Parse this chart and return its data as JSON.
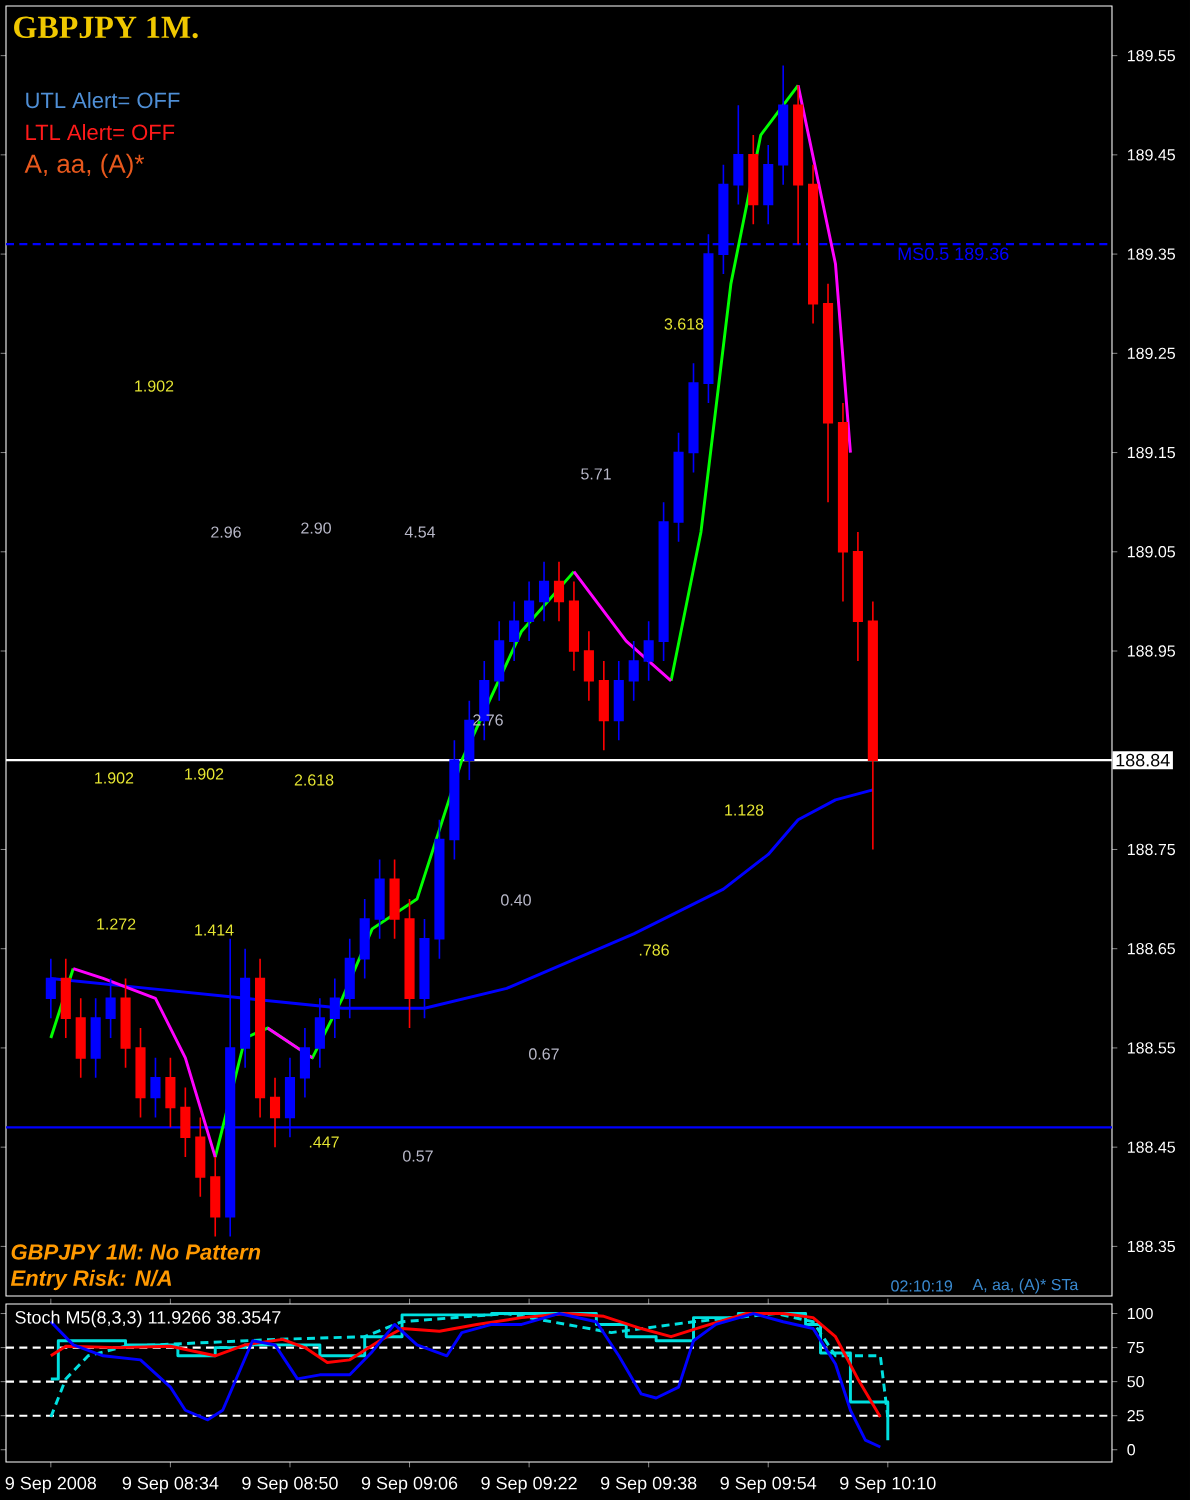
{
  "chart_data": [
    {
      "type": "candlestick",
      "title": "GBPJPY 1M.",
      "x": [
        "2008-09-09T08:18",
        "2008-09-09T08:20",
        "2008-09-09T08:22",
        "2008-09-09T08:24",
        "2008-09-09T08:26",
        "2008-09-09T08:28",
        "2008-09-09T08:30",
        "2008-09-09T08:32",
        "2008-09-09T08:34",
        "2008-09-09T08:36",
        "2008-09-09T08:38",
        "2008-09-09T08:40",
        "2008-09-09T08:42",
        "2008-09-09T08:44",
        "2008-09-09T08:46",
        "2008-09-09T08:48",
        "2008-09-09T08:50",
        "2008-09-09T08:52",
        "2008-09-09T08:54",
        "2008-09-09T08:56",
        "2008-09-09T08:58",
        "2008-09-09T09:00",
        "2008-09-09T09:02",
        "2008-09-09T09:04",
        "2008-09-09T09:06",
        "2008-09-09T09:08",
        "2008-09-09T09:10",
        "2008-09-09T09:12",
        "2008-09-09T09:14",
        "2008-09-09T09:16",
        "2008-09-09T09:18",
        "2008-09-09T09:20",
        "2008-09-09T09:22",
        "2008-09-09T09:24",
        "2008-09-09T09:26",
        "2008-09-09T09:28",
        "2008-09-09T09:30",
        "2008-09-09T09:32",
        "2008-09-09T09:34",
        "2008-09-09T09:36",
        "2008-09-09T09:38",
        "2008-09-09T09:40",
        "2008-09-09T09:42",
        "2008-09-09T09:44",
        "2008-09-09T09:46",
        "2008-09-09T09:48",
        "2008-09-09T09:50",
        "2008-09-09T09:52",
        "2008-09-09T09:54",
        "2008-09-09T09:56",
        "2008-09-09T09:58",
        "2008-09-09T10:00",
        "2008-09-09T10:02",
        "2008-09-09T10:04",
        "2008-09-09T10:06",
        "2008-09-09T10:08"
      ],
      "ohlc": [
        [
          188.6,
          188.64,
          188.58,
          188.62
        ],
        [
          188.62,
          188.64,
          188.56,
          188.58
        ],
        [
          188.58,
          188.6,
          188.52,
          188.54
        ],
        [
          188.54,
          188.6,
          188.52,
          188.58
        ],
        [
          188.58,
          188.62,
          188.56,
          188.6
        ],
        [
          188.6,
          188.62,
          188.53,
          188.55
        ],
        [
          188.55,
          188.57,
          188.48,
          188.5
        ],
        [
          188.5,
          188.54,
          188.48,
          188.52
        ],
        [
          188.52,
          188.54,
          188.47,
          188.49
        ],
        [
          188.49,
          188.51,
          188.44,
          188.46
        ],
        [
          188.46,
          188.48,
          188.4,
          188.42
        ],
        [
          188.42,
          188.44,
          188.36,
          188.38
        ],
        [
          188.38,
          188.66,
          188.36,
          188.55
        ],
        [
          188.55,
          188.65,
          188.53,
          188.62
        ],
        [
          188.62,
          188.64,
          188.48,
          188.5
        ],
        [
          188.5,
          188.52,
          188.45,
          188.48
        ],
        [
          188.48,
          188.54,
          188.46,
          188.52
        ],
        [
          188.52,
          188.57,
          188.5,
          188.55
        ],
        [
          188.55,
          188.6,
          188.53,
          188.58
        ],
        [
          188.58,
          188.62,
          188.56,
          188.6
        ],
        [
          188.6,
          188.66,
          188.58,
          188.64
        ],
        [
          188.64,
          188.7,
          188.62,
          188.68
        ],
        [
          188.68,
          188.74,
          188.66,
          188.72
        ],
        [
          188.72,
          188.74,
          188.66,
          188.68
        ],
        [
          188.68,
          188.7,
          188.57,
          188.6
        ],
        [
          188.6,
          188.68,
          188.58,
          188.66
        ],
        [
          188.66,
          188.78,
          188.64,
          188.76
        ],
        [
          188.76,
          188.86,
          188.74,
          188.84
        ],
        [
          188.84,
          188.9,
          188.82,
          188.88
        ],
        [
          188.88,
          188.94,
          188.86,
          188.92
        ],
        [
          188.92,
          188.98,
          188.9,
          188.96
        ],
        [
          188.96,
          189.0,
          188.94,
          188.98
        ],
        [
          188.98,
          189.02,
          188.96,
          189.0
        ],
        [
          189.0,
          189.04,
          188.98,
          189.02
        ],
        [
          189.02,
          189.04,
          188.98,
          189.0
        ],
        [
          189.0,
          189.02,
          188.93,
          188.95
        ],
        [
          188.95,
          188.97,
          188.9,
          188.92
        ],
        [
          188.92,
          188.94,
          188.85,
          188.88
        ],
        [
          188.88,
          188.94,
          188.86,
          188.92
        ],
        [
          188.92,
          188.96,
          188.9,
          188.94
        ],
        [
          188.94,
          188.98,
          188.92,
          188.96
        ],
        [
          188.96,
          189.1,
          188.94,
          189.08
        ],
        [
          189.08,
          189.17,
          189.06,
          189.15
        ],
        [
          189.15,
          189.24,
          189.13,
          189.22
        ],
        [
          189.22,
          189.37,
          189.2,
          189.35
        ],
        [
          189.35,
          189.44,
          189.33,
          189.42
        ],
        [
          189.42,
          189.5,
          189.4,
          189.45
        ],
        [
          189.45,
          189.47,
          189.38,
          189.4
        ],
        [
          189.4,
          189.46,
          189.38,
          189.44
        ],
        [
          189.44,
          189.54,
          189.42,
          189.5
        ],
        [
          189.5,
          189.52,
          189.36,
          189.42
        ],
        [
          189.42,
          189.44,
          189.28,
          189.3
        ],
        [
          189.3,
          189.32,
          189.1,
          189.18
        ],
        [
          189.18,
          189.2,
          189.0,
          189.05
        ],
        [
          189.05,
          189.07,
          188.94,
          188.98
        ],
        [
          188.98,
          189.0,
          188.75,
          188.84
        ]
      ],
      "series": [
        {
          "type": "line",
          "color": "#0000ff",
          "x": [
            "2008-09-09T08:18",
            "2008-09-09T08:31",
            "2008-09-09T08:44",
            "2008-09-09T08:57",
            "2008-09-09T09:08",
            "2008-09-09T09:19",
            "2008-09-09T09:36",
            "2008-09-09T09:48",
            "2008-09-09T09:54",
            "2008-09-09T09:58",
            "2008-09-09T10:03",
            "2008-09-09T10:08"
          ],
          "values": [
            188.62,
            188.61,
            188.6,
            188.59,
            188.59,
            188.61,
            188.665,
            188.71,
            188.745,
            188.78,
            188.8,
            188.81
          ]
        },
        {
          "type": "line",
          "color": "#00ff00",
          "x": [
            "2008-09-09T08:18",
            "2008-09-09T08:21",
            "2008-09-09T08:25",
            "2008-09-09T08:32",
            "2008-09-09T08:36",
            "2008-09-09T08:40",
            "2008-09-09T08:44",
            "2008-09-09T08:47",
            "2008-09-09T08:53",
            "2008-09-09T08:57",
            "2008-09-09T09:01",
            "2008-09-09T09:07",
            "2008-09-09T09:13",
            "2008-09-09T09:21",
            "2008-09-09T09:28",
            "2008-09-09T09:35",
            "2008-09-09T09:41",
            "2008-09-09T09:45",
            "2008-09-09T09:49",
            "2008-09-09T09:53",
            "2008-09-09T09:58"
          ],
          "values": [
            188.56,
            188.63,
            null,
            null,
            null,
            188.44,
            188.56,
            188.57,
            188.54,
            188.6,
            188.67,
            188.7,
            188.84,
            188.97,
            189.03,
            null,
            188.92,
            189.07,
            189.32,
            189.47,
            189.52
          ]
        },
        {
          "type": "line",
          "color": "#ff00ff",
          "x": [
            "2008-09-09T08:21",
            "2008-09-09T08:25",
            "2008-09-09T08:32",
            "2008-09-09T08:36",
            "2008-09-09T08:40",
            "2008-09-09T08:44",
            "2008-09-09T08:47",
            "2008-09-09T08:53",
            "2008-09-09T08:57",
            "2008-09-09T09:01",
            "2008-09-09T09:07",
            "2008-09-09T09:13",
            "2008-09-09T09:21",
            "2008-09-09T09:28",
            "2008-09-09T09:35",
            "2008-09-09T09:41",
            "2008-09-09T09:45",
            "2008-09-09T09:49",
            "2008-09-09T09:53",
            "2008-09-09T09:58",
            "2008-09-09T10:03",
            "2008-09-09T10:05"
          ],
          "values": [
            188.63,
            188.62,
            188.6,
            188.54,
            188.44,
            null,
            188.57,
            188.54,
            null,
            null,
            null,
            null,
            null,
            189.03,
            188.96,
            188.92,
            null,
            null,
            null,
            189.52,
            189.34,
            189.15
          ]
        }
      ],
      "xlim": [
        "2008-09-09T08:12",
        "2008-09-09T10:40"
      ],
      "ylim": [
        188.3,
        189.6
      ],
      "yticks": [
        188.35,
        188.45,
        188.55,
        188.65,
        188.75,
        188.95,
        189.05,
        189.15,
        189.25,
        189.35,
        189.45,
        189.55
      ],
      "tick_labels": "y",
      "grid": false,
      "marker": "none",
      "ref_lines": [
        {
          "axis": "y",
          "value": 189.36,
          "label": "MS0.5 189.36",
          "color": "#0000ff",
          "line_style": "dashed"
        },
        {
          "axis": "y",
          "value": 188.47,
          "color": "#0000ff"
        },
        {
          "axis": "y",
          "value": 188.84,
          "label": "188.84",
          "color": "#ffffff"
        }
      ],
      "annotations": [
        "UTL Alert= OFF",
        "LTL Alert= OFF",
        "A, aa, (A)*",
        "GBPJPY 1M: No Pattern",
        "Entry Risk: N/A",
        "02:10:19",
        "A, aa, (A)* STa",
        "1.902",
        "2.96",
        "2.90",
        "4.54",
        "5.71",
        "3.618",
        "2.76",
        "1.902",
        "1.902",
        "2.618",
        "1.128",
        "1.272",
        "1.414",
        "0.40",
        ".786",
        "0.67",
        ".447",
        "0.57"
      ]
    },
    {
      "type": "line",
      "title": "Stoch M5(8,3,3) 11.9266 38.3547",
      "series": [
        {
          "color": "#00e0e0",
          "type": "step",
          "x": [
            "2008-09-09T08:18",
            "2008-09-09T08:19",
            "2008-09-09T08:23",
            "2008-09-09T08:28",
            "2008-09-09T08:35",
            "2008-09-09T08:40",
            "2008-09-09T08:44",
            "2008-09-09T08:49",
            "2008-09-09T08:54",
            "2008-09-09T09:00",
            "2008-09-09T09:05",
            "2008-09-09T09:17",
            "2008-09-09T09:21",
            "2008-09-09T09:29",
            "2008-09-09T09:31",
            "2008-09-09T09:35",
            "2008-09-09T09:39",
            "2008-09-09T09:44",
            "2008-09-09T09:50",
            "2008-09-09T09:56",
            "2008-09-09T09:59",
            "2008-09-09T10:01",
            "2008-09-09T10:05",
            "2008-09-09T10:09",
            "2008-09-09T10:10"
          ],
          "values": [
            52,
            80,
            80,
            77,
            69,
            75,
            77,
            77,
            69,
            83,
            99,
            100,
            100,
            100,
            92,
            83,
            80,
            97,
            100,
            100,
            92,
            71,
            35,
            35,
            7
          ]
        },
        {
          "color": "#00e0e0",
          "line_style": "dashed",
          "x": [
            "2008-09-09T08:18",
            "2008-09-09T08:20",
            "2008-09-09T08:23",
            "2008-09-09T08:28",
            "2008-09-09T08:48",
            "2008-09-09T09:00",
            "2008-09-09T09:05",
            "2008-09-09T09:19",
            "2008-09-09T09:33",
            "2008-09-09T09:44",
            "2008-09-09T09:55",
            "2008-09-09T10:00",
            "2008-09-09T10:03",
            "2008-09-09T10:09",
            "2008-09-09T10:10"
          ],
          "values": [
            24,
            52,
            69,
            76,
            81,
            83,
            94,
            100,
            86,
            94,
            100,
            94,
            69,
            69,
            24
          ]
        },
        {
          "color": "#ff0000",
          "x": [
            "2008-09-09T08:18",
            "2008-09-09T08:20",
            "2008-09-09T08:27",
            "2008-09-09T08:34",
            "2008-09-09T08:40",
            "2008-09-09T08:44",
            "2008-09-09T08:49",
            "2008-09-09T08:52",
            "2008-09-09T08:55",
            "2008-09-09T08:58",
            "2008-09-09T09:02",
            "2008-09-09T09:05",
            "2008-09-09T09:10",
            "2008-09-09T09:15",
            "2008-09-09T09:21",
            "2008-09-09T09:27",
            "2008-09-09T09:32",
            "2008-09-09T09:37",
            "2008-09-09T09:41",
            "2008-09-09T09:45",
            "2008-09-09T09:51",
            "2008-09-09T09:56",
            "2008-09-09T10:00",
            "2008-09-09T10:03",
            "2008-09-09T10:06",
            "2008-09-09T10:09"
          ],
          "values": [
            69,
            76,
            75,
            76,
            69,
            77,
            81,
            75,
            64,
            66,
            80,
            89,
            87,
            92,
            97,
            100,
            98,
            89,
            83,
            90,
            100,
            100,
            97,
            83,
            52,
            24
          ]
        },
        {
          "color": "#0000ff",
          "x": [
            "2008-09-09T08:18",
            "2008-09-09T08:21",
            "2008-09-09T08:25",
            "2008-09-09T08:30",
            "2008-09-09T08:34",
            "2008-09-09T08:36",
            "2008-09-09T08:39",
            "2008-09-09T08:41",
            "2008-09-09T08:45",
            "2008-09-09T08:48",
            "2008-09-09T08:51",
            "2008-09-09T08:54",
            "2008-09-09T08:58",
            "2008-09-09T09:01",
            "2008-09-09T09:04",
            "2008-09-09T09:07",
            "2008-09-09T09:11",
            "2008-09-09T09:13",
            "2008-09-09T09:17",
            "2008-09-09T09:21",
            "2008-09-09T09:26",
            "2008-09-09T09:31",
            "2008-09-09T09:34",
            "2008-09-09T09:37",
            "2008-09-09T09:39",
            "2008-09-09T09:42",
            "2008-09-09T09:44",
            "2008-09-09T09:47",
            "2008-09-09T09:52",
            "2008-09-09T09:56",
            "2008-09-09T10:00",
            "2008-09-09T10:03",
            "2008-09-09T10:05",
            "2008-09-09T10:07",
            "2008-09-09T10:09"
          ],
          "values": [
            94,
            77,
            69,
            66,
            46,
            29,
            22,
            29,
            80,
            77,
            52,
            55,
            55,
            72,
            92,
            77,
            69,
            86,
            92,
            92,
            100,
            94,
            69,
            41,
            38,
            46,
            80,
            92,
            100,
            94,
            89,
            63,
            29,
            7,
            2
          ]
        }
      ],
      "xlim": [
        "2008-09-09T08:12",
        "2008-09-09T10:40"
      ],
      "ylim": [
        -9,
        107
      ],
      "yticks": [
        0,
        25,
        50,
        75,
        100
      ],
      "xticks": [
        {
          "value": "2008-09-09T08:18",
          "label": "9 Sep 2008"
        },
        {
          "value": "2008-09-09T08:34",
          "label": "9 Sep 08:34"
        },
        {
          "value": "2008-09-09T08:50",
          "label": "9 Sep 08:50"
        },
        {
          "value": "2008-09-09T09:06",
          "label": "9 Sep 09:06"
        },
        {
          "value": "2008-09-09T09:22",
          "label": "9 Sep 09:22"
        },
        {
          "value": "2008-09-09T09:38",
          "label": "9 Sep 09:38"
        },
        {
          "value": "2008-09-09T09:54",
          "label": "9 Sep 09:54"
        },
        {
          "value": "2008-09-09T10:10",
          "label": "9 Sep 10:10"
        }
      ],
      "grid": false,
      "marker": "none",
      "ref_lines": [
        {
          "axis": "y",
          "value": 75,
          "color": "#ffffff",
          "line_style": "dashed"
        },
        {
          "axis": "y",
          "value": 50,
          "color": "#ffffff",
          "line_style": "dashed"
        },
        {
          "axis": "y",
          "value": 25,
          "color": "#ffffff",
          "line_style": "dashed"
        }
      ]
    }
  ]
}
